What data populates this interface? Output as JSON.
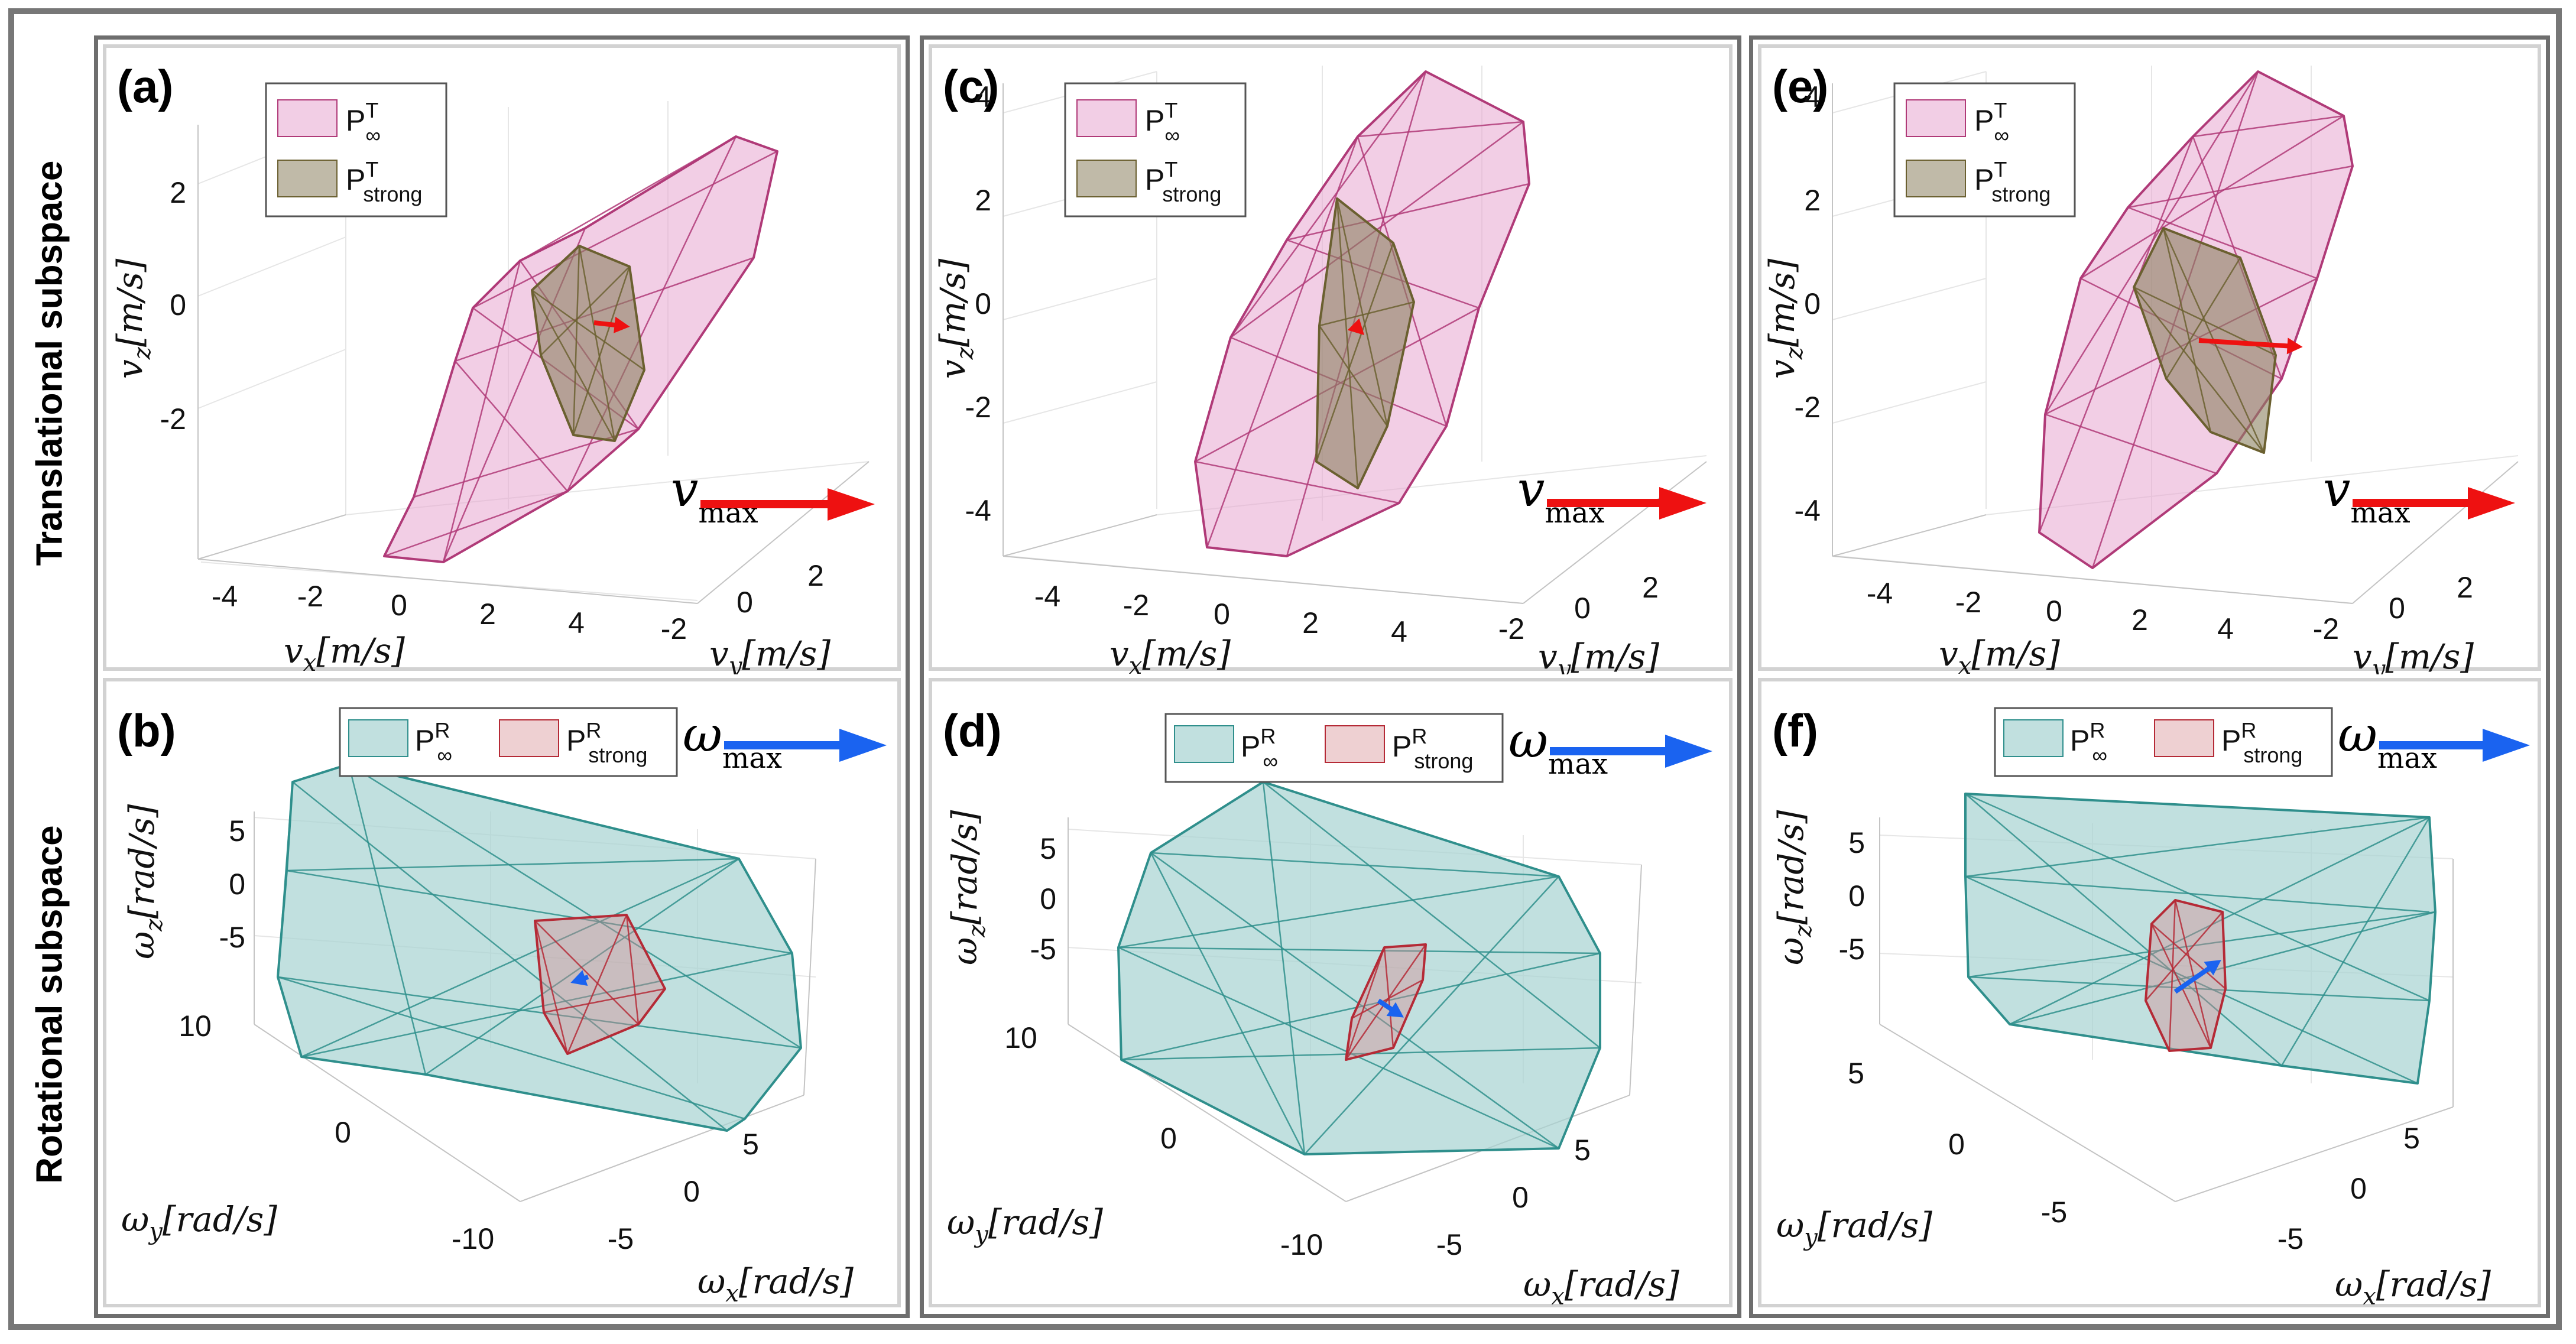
{
  "row_labels": {
    "top": "Translational subspace",
    "bottom": "Rotational subspace"
  },
  "colors": {
    "pink_fill": "#e8a6cf",
    "pink_edge": "#b03a78",
    "olive_fill": "#8c8260",
    "olive_edge": "#6b6030",
    "teal_fill": "#a6d3d1",
    "teal_edge": "#2f8f8c",
    "red_box_fill": "#d48a8f",
    "red_box_edge": "#b52a36",
    "red_arrow": "#ee1111",
    "blue_arrow": "#1a63f0"
  },
  "top_panels": [
    {
      "label": "(a)",
      "z_ticks": [
        "2",
        "0",
        "-2"
      ],
      "x_ticks": [
        "-4",
        "-2",
        "0",
        "2",
        "4"
      ],
      "y_ticks": [
        "-2",
        "0",
        "2"
      ],
      "z_axis_label": "v",
      "z_axis_sub": "z",
      "z_axis_unit": "[m/s]",
      "x_axis_label": "v",
      "x_axis_sub": "x",
      "x_axis_unit": "[m/s]",
      "y_axis_label": "v",
      "y_axis_sub": "y",
      "y_axis_unit": "[m/s]",
      "legend_inf": "P",
      "legend_inf_sup": "T",
      "legend_inf_sub": "∞",
      "legend_strong": "P",
      "legend_strong_sup": "T",
      "legend_strong_sub": "strong",
      "arrow_label": "v",
      "arrow_sub": "max"
    },
    {
      "label": "(c)",
      "z_ticks": [
        "4",
        "2",
        "0",
        "-2",
        "-4"
      ],
      "x_ticks": [
        "-4",
        "-2",
        "0",
        "2",
        "4"
      ],
      "y_ticks": [
        "-2",
        "0",
        "2"
      ],
      "z_axis_label": "v",
      "z_axis_sub": "z",
      "z_axis_unit": "[m/s]",
      "x_axis_label": "v",
      "x_axis_sub": "x",
      "x_axis_unit": "[m/s]",
      "y_axis_label": "v",
      "y_axis_sub": "y",
      "y_axis_unit": "[m/s]",
      "legend_inf": "P",
      "legend_inf_sup": "T",
      "legend_inf_sub": "∞",
      "legend_strong": "P",
      "legend_strong_sup": "T",
      "legend_strong_sub": "strong",
      "arrow_label": "v",
      "arrow_sub": "max"
    },
    {
      "label": "(e)",
      "z_ticks": [
        "4",
        "2",
        "0",
        "-2",
        "-4"
      ],
      "x_ticks": [
        "-4",
        "-2",
        "0",
        "2",
        "4"
      ],
      "y_ticks": [
        "-2",
        "0",
        "2"
      ],
      "z_axis_label": "v",
      "z_axis_sub": "z",
      "z_axis_unit": "[m/s]",
      "x_axis_label": "v",
      "x_axis_sub": "x",
      "x_axis_unit": "[m/s]",
      "y_axis_label": "v",
      "y_axis_sub": "y",
      "y_axis_unit": "[m/s]",
      "legend_inf": "P",
      "legend_inf_sup": "T",
      "legend_inf_sub": "∞",
      "legend_strong": "P",
      "legend_strong_sup": "T",
      "legend_strong_sub": "strong",
      "arrow_label": "v",
      "arrow_sub": "max"
    }
  ],
  "bottom_panels": [
    {
      "label": "(b)",
      "z_ticks": [
        "5",
        "0",
        "-5"
      ],
      "y_ticks": [
        "10",
        "0",
        "-10"
      ],
      "x_ticks": [
        "5",
        "0",
        "-5"
      ],
      "z_axis_label": "ω",
      "z_axis_sub": "z",
      "z_axis_unit": "[rad/s]",
      "y_axis_label": "ω",
      "y_axis_sub": "y",
      "y_axis_unit": "[rad/s]",
      "x_axis_label": "ω",
      "x_axis_sub": "x",
      "x_axis_unit": "[rad/s]",
      "legend_inf": "P",
      "legend_inf_sup": "R",
      "legend_inf_sub": "∞",
      "legend_strong": "P",
      "legend_strong_sup": "R",
      "legend_strong_sub": "strong",
      "arrow_label": "ω",
      "arrow_sub": "max"
    },
    {
      "label": "(d)",
      "z_ticks": [
        "5",
        "0",
        "-5"
      ],
      "y_ticks": [
        "10",
        "0",
        "-10"
      ],
      "x_ticks": [
        "5",
        "0",
        "-5"
      ],
      "z_axis_label": "ω",
      "z_axis_sub": "z",
      "z_axis_unit": "[rad/s]",
      "y_axis_label": "ω",
      "y_axis_sub": "y",
      "y_axis_unit": "[rad/s]",
      "x_axis_label": "ω",
      "x_axis_sub": "x",
      "x_axis_unit": "[rad/s]",
      "legend_inf": "P",
      "legend_inf_sup": "R",
      "legend_inf_sub": "∞",
      "legend_strong": "P",
      "legend_strong_sup": "R",
      "legend_strong_sub": "strong",
      "arrow_label": "ω",
      "arrow_sub": "max"
    },
    {
      "label": "(f)",
      "z_ticks": [
        "5",
        "0",
        "-5"
      ],
      "y_ticks": [
        "5",
        "0",
        "-5"
      ],
      "x_ticks": [
        "5",
        "0",
        "-5"
      ],
      "z_axis_label": "ω",
      "z_axis_sub": "z",
      "z_axis_unit": "[rad/s]",
      "y_axis_label": "ω",
      "y_axis_sub": "y",
      "y_axis_unit": "[rad/s]",
      "x_axis_label": "ω",
      "x_axis_sub": "x",
      "x_axis_unit": "[rad/s]",
      "legend_inf": "P",
      "legend_inf_sup": "R",
      "legend_inf_sub": "∞",
      "legend_strong": "P",
      "legend_strong_sup": "R",
      "legend_strong_sub": "strong",
      "arrow_label": "ω",
      "arrow_sub": "max"
    }
  ]
}
